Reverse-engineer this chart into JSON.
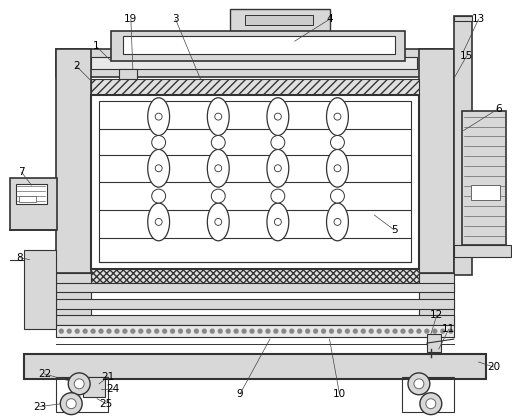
{
  "bg_color": "#ffffff",
  "lc": "#666666",
  "lcd": "#333333",
  "label_color": "#000000",
  "figsize": [
    5.14,
    4.17
  ],
  "dpi": 100
}
